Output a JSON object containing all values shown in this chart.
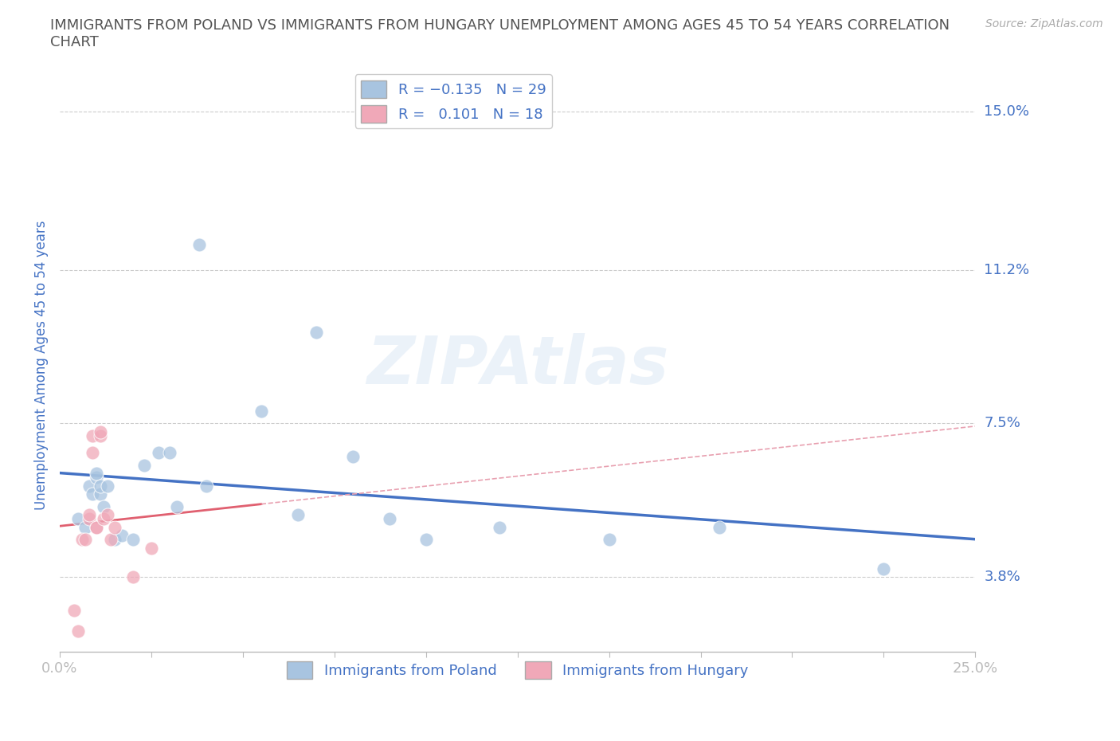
{
  "title_line1": "IMMIGRANTS FROM POLAND VS IMMIGRANTS FROM HUNGARY UNEMPLOYMENT AMONG AGES 45 TO 54 YEARS CORRELATION",
  "title_line2": "CHART",
  "source": "Source: ZipAtlas.com",
  "ylabel": "Unemployment Among Ages 45 to 54 years",
  "xlim": [
    0.0,
    0.25
  ],
  "ylim": [
    0.02,
    0.158
  ],
  "yticks": [
    0.038,
    0.075,
    0.112,
    0.15
  ],
  "ytick_labels": [
    "3.8%",
    "7.5%",
    "11.2%",
    "15.0%"
  ],
  "xticks": [
    0.0,
    0.025,
    0.05,
    0.075,
    0.1,
    0.125,
    0.15,
    0.175,
    0.2,
    0.225,
    0.25
  ],
  "xtick_labels": [
    "0.0%",
    "",
    "",
    "",
    "",
    "",
    "",
    "",
    "",
    "",
    "25.0%"
  ],
  "poland_color": "#a8c4e0",
  "hungary_color": "#f0a8b8",
  "poland_R": -0.135,
  "poland_N": 29,
  "hungary_R": 0.101,
  "hungary_N": 18,
  "legend_label_poland": "Immigrants from Poland",
  "legend_label_hungary": "Immigrants from Hungary",
  "watermark": "ZIPAtlas",
  "poland_x": [
    0.005,
    0.007,
    0.008,
    0.009,
    0.01,
    0.01,
    0.011,
    0.011,
    0.012,
    0.013,
    0.015,
    0.017,
    0.02,
    0.023,
    0.027,
    0.03,
    0.032,
    0.038,
    0.04,
    0.055,
    0.065,
    0.07,
    0.08,
    0.09,
    0.1,
    0.12,
    0.15,
    0.18,
    0.225
  ],
  "poland_y": [
    0.052,
    0.05,
    0.06,
    0.058,
    0.062,
    0.063,
    0.058,
    0.06,
    0.055,
    0.06,
    0.047,
    0.048,
    0.047,
    0.065,
    0.068,
    0.068,
    0.055,
    0.118,
    0.06,
    0.078,
    0.053,
    0.097,
    0.067,
    0.052,
    0.047,
    0.05,
    0.047,
    0.05,
    0.04
  ],
  "hungary_x": [
    0.004,
    0.005,
    0.006,
    0.007,
    0.008,
    0.008,
    0.009,
    0.009,
    0.01,
    0.01,
    0.011,
    0.011,
    0.012,
    0.013,
    0.014,
    0.015,
    0.02,
    0.025
  ],
  "hungary_y": [
    0.03,
    0.025,
    0.047,
    0.047,
    0.052,
    0.053,
    0.068,
    0.072,
    0.05,
    0.05,
    0.072,
    0.073,
    0.052,
    0.053,
    0.047,
    0.05,
    0.038,
    0.045
  ],
  "grid_color": "#cccccc",
  "trend_poland_color": "#4472c4",
  "trend_hungary_color": "#e06070",
  "trend_hungary_dash_color": "#e8a0b0",
  "background_color": "#ffffff",
  "title_color": "#555555",
  "axis_label_color": "#4472c4",
  "tick_label_color": "#4472c4"
}
